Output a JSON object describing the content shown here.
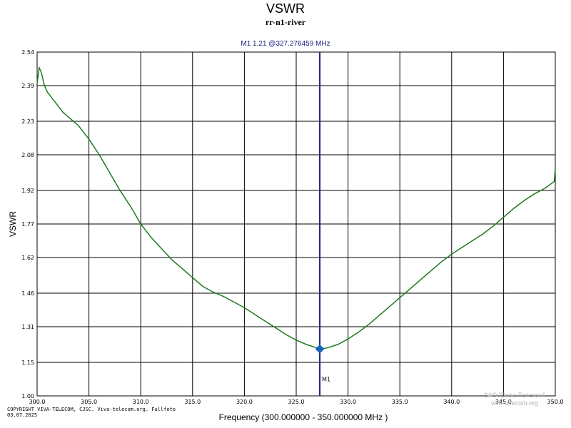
{
  "chart_data": {
    "type": "line",
    "title": "VSWR",
    "subtitle": "rr-n1-river",
    "xlabel": "Frequency (300.000000 - 350.000000 MHz )",
    "ylabel": "VSWR",
    "xlim": [
      300,
      350
    ],
    "ylim": [
      1.0,
      2.54
    ],
    "x_ticks": [
      300,
      305,
      310,
      315,
      320,
      325,
      330,
      335,
      340,
      345,
      350
    ],
    "x_tick_labels": [
      "300.0",
      "305.0",
      "310.0",
      "315.0",
      "320.0",
      "325.0",
      "330.0",
      "335.0",
      "340.0",
      "345.0",
      "350.0"
    ],
    "y_ticks": [
      1.0,
      1.15,
      1.31,
      1.46,
      1.62,
      1.77,
      1.92,
      2.08,
      2.23,
      2.39,
      2.54
    ],
    "y_tick_labels": [
      "1.00",
      "1.15",
      "1.31",
      "1.46",
      "1.62",
      "1.77",
      "1.92",
      "2.08",
      "2.23",
      "2.39",
      "2.54"
    ],
    "grid": true,
    "series": [
      {
        "color": "#1e7a1e",
        "x": [
          300.0,
          300.2,
          300.4,
          300.7,
          301.0,
          301.5,
          302.0,
          302.5,
          303.0,
          303.5,
          304.0,
          304.5,
          305.0,
          306.0,
          307.0,
          308.0,
          309.0,
          310.0,
          311.0,
          312.0,
          313.0,
          314.0,
          315.0,
          316.0,
          317.0,
          318.0,
          319.0,
          320.0,
          321.0,
          322.0,
          323.0,
          324.0,
          325.0,
          326.0,
          327.0,
          327.276,
          328.0,
          329.0,
          330.0,
          331.0,
          332.0,
          333.0,
          334.0,
          335.0,
          336.0,
          337.0,
          338.0,
          339.0,
          340.0,
          341.0,
          342.0,
          343.0,
          344.0,
          345.0,
          346.0,
          347.0,
          348.0,
          349.0,
          349.9,
          350.0
        ],
        "y": [
          2.4,
          2.47,
          2.45,
          2.39,
          2.36,
          2.33,
          2.3,
          2.27,
          2.25,
          2.23,
          2.21,
          2.18,
          2.15,
          2.08,
          2.0,
          1.92,
          1.85,
          1.77,
          1.71,
          1.66,
          1.61,
          1.57,
          1.53,
          1.49,
          1.465,
          1.445,
          1.42,
          1.395,
          1.365,
          1.335,
          1.305,
          1.275,
          1.25,
          1.23,
          1.215,
          1.21,
          1.215,
          1.23,
          1.255,
          1.285,
          1.32,
          1.36,
          1.4,
          1.44,
          1.48,
          1.52,
          1.56,
          1.6,
          1.635,
          1.665,
          1.695,
          1.725,
          1.76,
          1.8,
          1.84,
          1.875,
          1.905,
          1.93,
          1.96,
          2.02
        ]
      }
    ],
    "marker": {
      "label": "M1",
      "x": 327.276459,
      "y": 1.21,
      "readout": "M1  1.21 @327.276459 MHz",
      "color": "#1a237e"
    }
  },
  "copyright": {
    "line1": "COPYRIGHT VIVA-TELECOM, CJSC. Viva-telecom.org. Fullfoto",
    "line2": "03.07.2025"
  },
  "watermark": {
    "line1": "ЗАО \"Вива-Телеком\"",
    "line2": "viva-telecom.org"
  }
}
